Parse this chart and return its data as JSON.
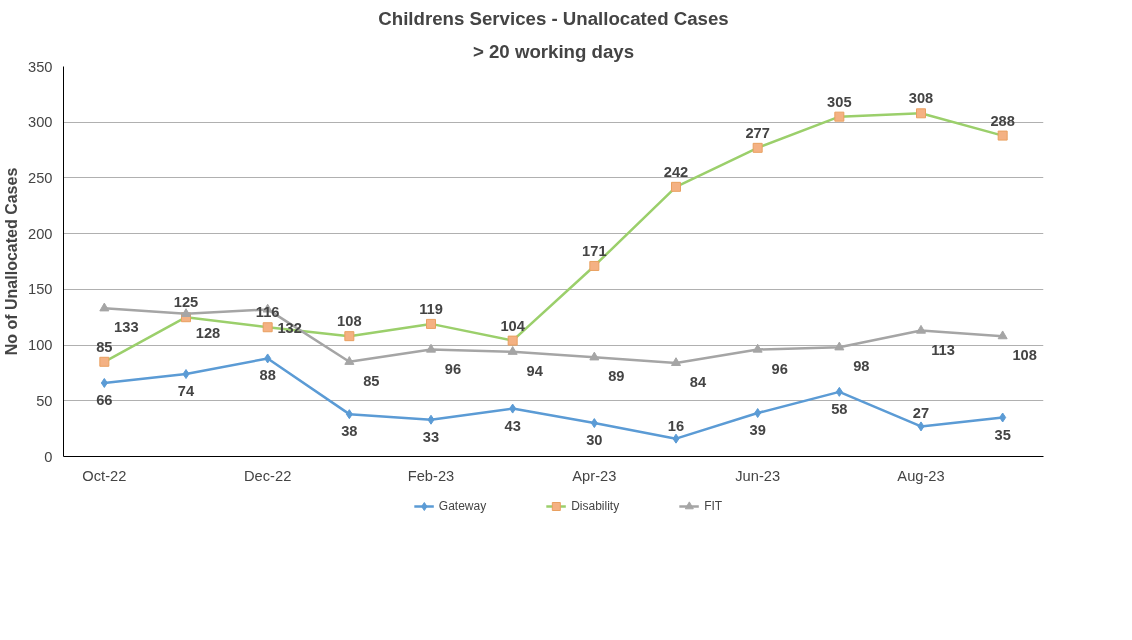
{
  "chart_data": {
    "type": "line",
    "title": "Childrens Services - Unallocated Cases",
    "subtitle": "> 20 working days",
    "ylabel": "No of Unallocated Cases",
    "categories": [
      "Oct-22",
      null,
      "Dec-22",
      null,
      "Feb-23",
      null,
      "Apr-23",
      null,
      "Jun-23",
      null,
      "Aug-23",
      null
    ],
    "series": [
      {
        "name": "Gateway",
        "color": "#5b9bd5",
        "marker": "diamond",
        "values": [
          66,
          74,
          88,
          38,
          33,
          43,
          30,
          16,
          39,
          58,
          27,
          35
        ]
      },
      {
        "name": "Disability",
        "color": "#9bcf6b",
        "marker": "square",
        "values": [
          85,
          125,
          116,
          108,
          119,
          104,
          171,
          242,
          277,
          305,
          308,
          288
        ]
      },
      {
        "name": "FIT",
        "color": "#a5a5a5",
        "marker": "triangle",
        "values": [
          133,
          128,
          132,
          85,
          96,
          94,
          89,
          84,
          96,
          98,
          113,
          108
        ]
      }
    ],
    "ylim": [
      0,
      350
    ],
    "yticks": [
      0,
      50,
      100,
      150,
      200,
      250,
      300,
      350
    ],
    "grid": "y",
    "legend": "bottom",
    "data_labels": true
  }
}
